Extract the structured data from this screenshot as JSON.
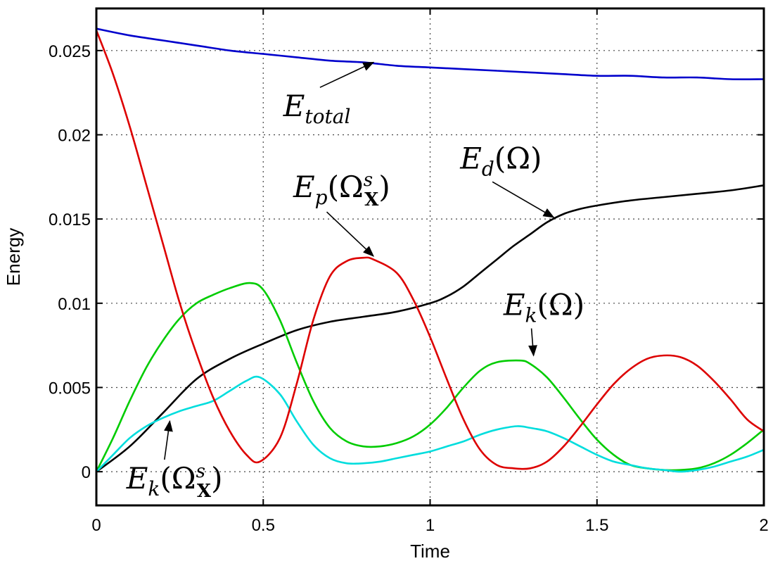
{
  "chart_data": {
    "type": "line",
    "title": "",
    "xlabel": "Time",
    "ylabel": "Energy",
    "xlim": [
      0,
      2
    ],
    "ylim": [
      -0.002,
      0.0275
    ],
    "xticks": [
      0,
      0.5,
      1,
      1.5,
      2
    ],
    "xtick_labels": [
      "0",
      "0.5",
      "1",
      "1.5",
      "2"
    ],
    "yticks": [
      0,
      0.005,
      0.01,
      0.015,
      0.02,
      0.025
    ],
    "ytick_labels": [
      "0",
      "0.005",
      "0.01",
      "0.015",
      "0.02",
      "0.025"
    ],
    "grid": true,
    "series": [
      {
        "name": "E_total",
        "color": "#0000cc",
        "x": [
          0,
          0.1,
          0.2,
          0.3,
          0.4,
          0.5,
          0.6,
          0.7,
          0.8,
          0.9,
          1.0,
          1.1,
          1.2,
          1.3,
          1.4,
          1.5,
          1.6,
          1.7,
          1.8,
          1.9,
          2.0
        ],
        "y": [
          0.0263,
          0.0259,
          0.0256,
          0.0253,
          0.025,
          0.0248,
          0.0246,
          0.0244,
          0.0243,
          0.0241,
          0.024,
          0.0239,
          0.0238,
          0.0237,
          0.0236,
          0.0235,
          0.0235,
          0.0234,
          0.0234,
          0.0233,
          0.0233
        ]
      },
      {
        "name": "E_p(Ω_X^s)",
        "color": "#dd0000",
        "x": [
          0,
          0.05,
          0.1,
          0.15,
          0.2,
          0.25,
          0.3,
          0.35,
          0.4,
          0.45,
          0.49,
          0.55,
          0.6,
          0.65,
          0.7,
          0.75,
          0.8,
          0.83,
          0.9,
          0.95,
          1.0,
          1.05,
          1.1,
          1.15,
          1.2,
          1.25,
          1.3,
          1.35,
          1.4,
          1.45,
          1.5,
          1.55,
          1.6,
          1.65,
          1.7,
          1.75,
          1.8,
          1.85,
          1.9,
          1.95,
          2.0
        ],
        "y": [
          0.0262,
          0.0236,
          0.0205,
          0.017,
          0.0135,
          0.01,
          0.007,
          0.0044,
          0.0024,
          0.001,
          0.0006,
          0.002,
          0.0052,
          0.009,
          0.0116,
          0.0125,
          0.0127,
          0.0126,
          0.0118,
          0.0102,
          0.008,
          0.0055,
          0.0031,
          0.0013,
          0.0004,
          0.0002,
          0.0002,
          0.0006,
          0.0015,
          0.0027,
          0.004,
          0.0052,
          0.0061,
          0.0067,
          0.0069,
          0.0068,
          0.0063,
          0.0054,
          0.0043,
          0.0031,
          0.0024
        ]
      },
      {
        "name": "E_d(Ω)",
        "color": "#000000",
        "x": [
          0,
          0.1,
          0.2,
          0.3,
          0.4,
          0.5,
          0.6,
          0.7,
          0.8,
          0.9,
          1.0,
          1.05,
          1.1,
          1.15,
          1.2,
          1.25,
          1.3,
          1.35,
          1.4,
          1.45,
          1.5,
          1.6,
          1.7,
          1.8,
          1.9,
          2.0
        ],
        "y": [
          0.0,
          0.0015,
          0.0035,
          0.0055,
          0.0067,
          0.0076,
          0.0084,
          0.0089,
          0.0092,
          0.0095,
          0.01,
          0.0104,
          0.011,
          0.0118,
          0.0126,
          0.0134,
          0.0141,
          0.0148,
          0.0153,
          0.0156,
          0.0158,
          0.0161,
          0.0163,
          0.0165,
          0.0167,
          0.017
        ]
      },
      {
        "name": "E_k(Ω)",
        "color": "#00cc00",
        "x": [
          0,
          0.05,
          0.1,
          0.15,
          0.2,
          0.25,
          0.3,
          0.35,
          0.4,
          0.46,
          0.5,
          0.55,
          0.6,
          0.65,
          0.7,
          0.75,
          0.8,
          0.85,
          0.9,
          0.95,
          1.0,
          1.05,
          1.1,
          1.15,
          1.2,
          1.27,
          1.3,
          1.35,
          1.4,
          1.45,
          1.5,
          1.55,
          1.6,
          1.65,
          1.7,
          1.75,
          1.8,
          1.85,
          1.9,
          1.95,
          2.0
        ],
        "y": [
          0.0,
          0.002,
          0.0042,
          0.0062,
          0.0078,
          0.0091,
          0.01,
          0.0105,
          0.0109,
          0.0112,
          0.0108,
          0.009,
          0.0065,
          0.0042,
          0.0026,
          0.0018,
          0.0015,
          0.0015,
          0.0017,
          0.0021,
          0.0028,
          0.0038,
          0.005,
          0.006,
          0.0065,
          0.0066,
          0.0064,
          0.0056,
          0.0044,
          0.0031,
          0.0019,
          0.001,
          0.0004,
          0.0002,
          0.0001,
          0.0001,
          0.0002,
          0.0005,
          0.001,
          0.0017,
          0.0025
        ]
      },
      {
        "name": "E_k(Ω_X^s)",
        "color": "#00dddd",
        "x": [
          0,
          0.05,
          0.1,
          0.15,
          0.2,
          0.25,
          0.3,
          0.35,
          0.4,
          0.45,
          0.49,
          0.55,
          0.6,
          0.65,
          0.7,
          0.75,
          0.8,
          0.85,
          0.9,
          0.95,
          1.0,
          1.05,
          1.1,
          1.15,
          1.2,
          1.26,
          1.3,
          1.35,
          1.4,
          1.45,
          1.5,
          1.55,
          1.6,
          1.65,
          1.7,
          1.75,
          1.8,
          1.85,
          1.9,
          1.95,
          2.0
        ],
        "y": [
          0.0,
          0.001,
          0.002,
          0.0027,
          0.0032,
          0.0036,
          0.0039,
          0.0042,
          0.0048,
          0.0054,
          0.0056,
          0.0046,
          0.003,
          0.0016,
          0.0008,
          0.0005,
          0.0005,
          0.0006,
          0.0008,
          0.001,
          0.0012,
          0.0015,
          0.0018,
          0.0022,
          0.0025,
          0.0027,
          0.0026,
          0.0024,
          0.002,
          0.0015,
          0.001,
          0.0006,
          0.0004,
          0.0002,
          0.0001,
          0.0,
          0.0001,
          0.0003,
          0.0006,
          0.0009,
          0.0013
        ]
      }
    ],
    "annotations": [
      {
        "series": 0,
        "main": "E",
        "sub": "total",
        "sup": "",
        "paren": ""
      },
      {
        "series": 1,
        "main": "E",
        "sub": "p",
        "sup": "s",
        "paren": "Ω",
        "paren_sub": "X"
      },
      {
        "series": 2,
        "main": "E",
        "sub": "d",
        "sup": "",
        "paren": "Ω"
      },
      {
        "series": 3,
        "main": "E",
        "sub": "k",
        "sup": "",
        "paren": "Ω"
      },
      {
        "series": 4,
        "main": "E",
        "sub": "k",
        "sup": "s",
        "paren": "Ω",
        "paren_sub": "X"
      }
    ]
  }
}
